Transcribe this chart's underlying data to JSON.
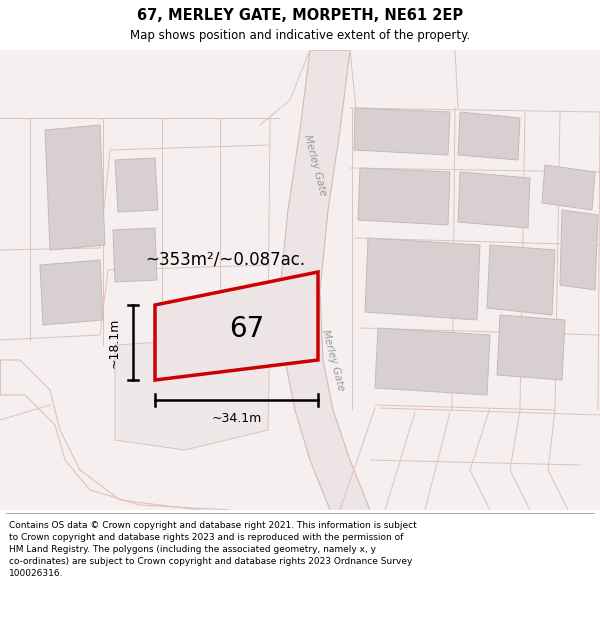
{
  "title": "67, MERLEY GATE, MORPETH, NE61 2EP",
  "subtitle": "Map shows position and indicative extent of the property.",
  "footer_line1": "Contains OS data © Crown copyright and database right 2021. This information is subject",
  "footer_line2": "to Crown copyright and database rights 2023 and is reproduced with the permission of",
  "footer_line3": "HM Land Registry. The polygons (including the associated geometry, namely x, y",
  "footer_line4": "co-ordinates) are subject to Crown copyright and database rights 2023 Ordnance Survey",
  "footer_line5": "100026316.",
  "area_label": "~353m²/~0.087ac.",
  "width_label": "~34.1m",
  "height_label": "~18.1m",
  "plot_number": "67",
  "map_bg": "#f5f0f0",
  "plot_fill": "#e8e0e0",
  "plot_edge": "#cc0000",
  "bld_fill": "#d8d0d0",
  "bld_edge": "#c8b8b8",
  "road_line": "#e0c0c0",
  "street_label": "Merley Gate"
}
